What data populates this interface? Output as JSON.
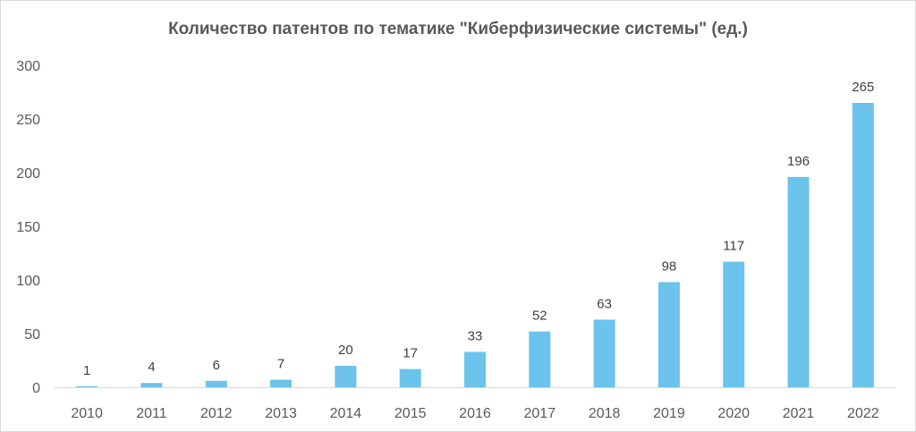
{
  "chart_data": {
    "type": "bar",
    "title": "Количество патентов по тематике \"Киберфизические системы\" (ед.)",
    "xlabel": "",
    "ylabel": "",
    "categories": [
      "2010",
      "2011",
      "2012",
      "2013",
      "2014",
      "2015",
      "2016",
      "2017",
      "2018",
      "2019",
      "2020",
      "2021",
      "2022"
    ],
    "values": [
      1,
      4,
      6,
      7,
      20,
      17,
      33,
      52,
      63,
      98,
      117,
      196,
      265
    ],
    "data_labels": [
      "1",
      "4",
      "6",
      "7",
      "20",
      "17",
      "33",
      "52",
      "63",
      "98",
      "117",
      "196",
      "265"
    ],
    "ylim": [
      0,
      300
    ],
    "yticks": [
      "0",
      "50",
      "100",
      "150",
      "200",
      "250",
      "300"
    ],
    "grid": false,
    "legend": "none",
    "bar_color": "#6cc3ec",
    "axis_color": "#d9d9d9",
    "text_color": "#595959"
  }
}
